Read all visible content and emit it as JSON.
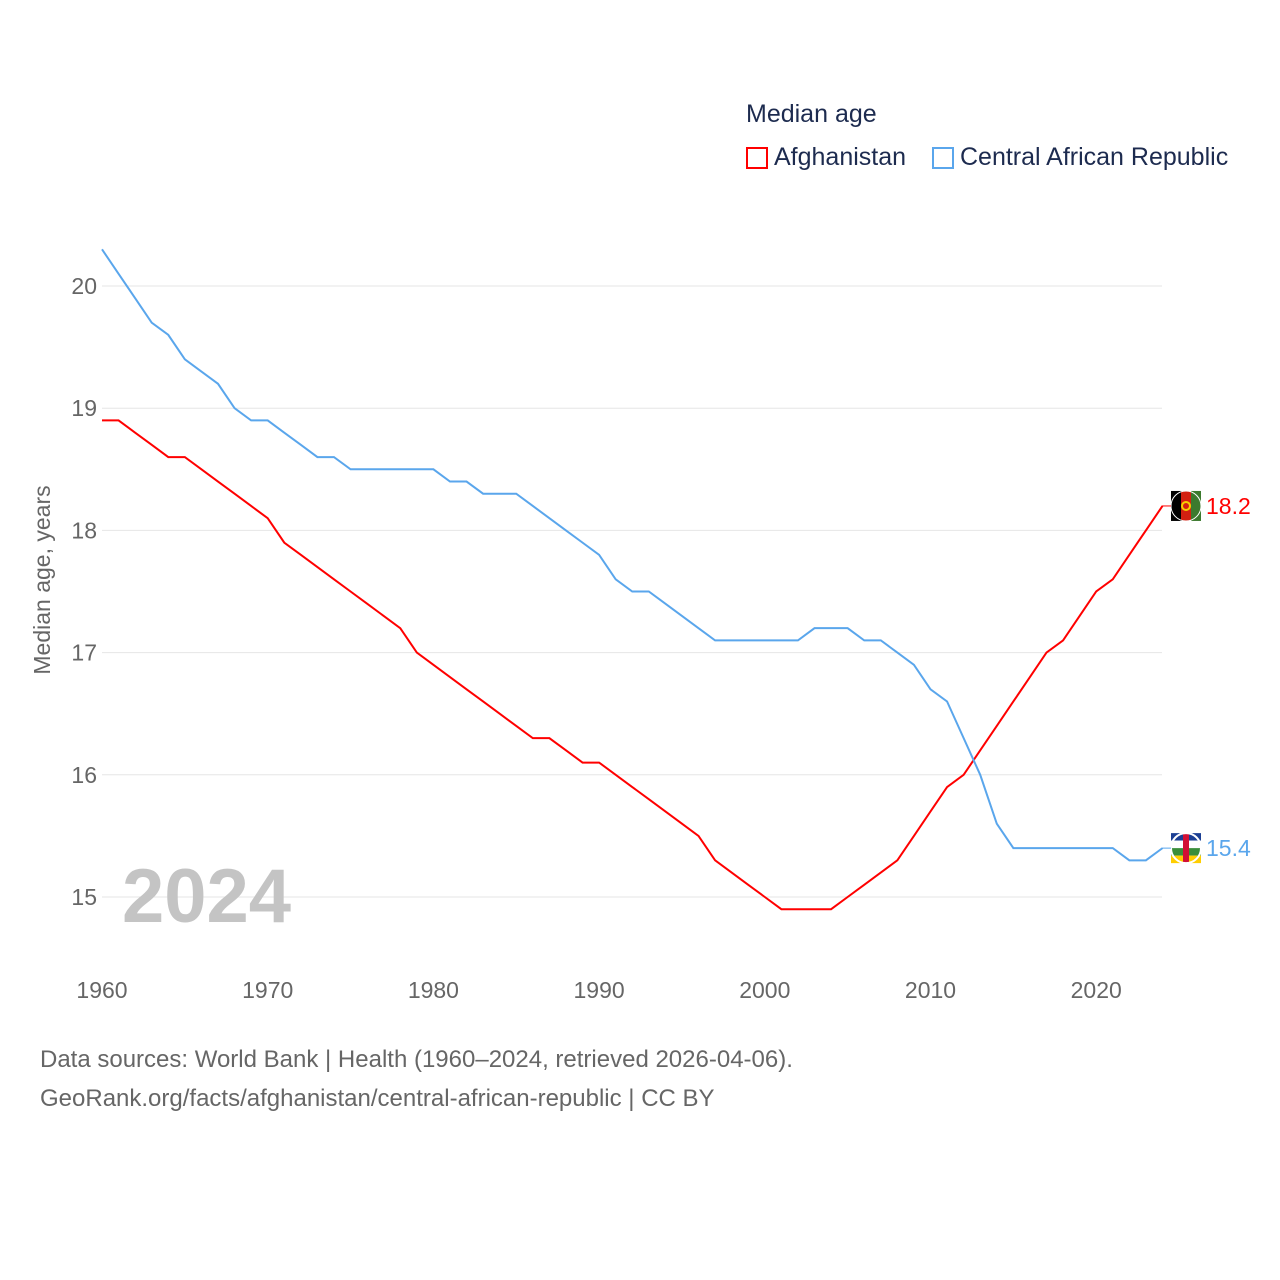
{
  "legend": {
    "title": "Median age",
    "items": [
      "Afghanistan",
      "Central African Republic"
    ]
  },
  "footer": {
    "line1": "Data sources: World Bank | Health (1960–2024, retrieved 2026-04-06).",
    "line2": "GeoRank.org/facts/afghanistan/central-african-republic | CC BY"
  },
  "colors": {
    "afghanistan": "#ff0000",
    "car": "#5aa6ec"
  },
  "chart_data": {
    "type": "line",
    "title": "Median age",
    "ylabel": "Median age, years",
    "xlabel": "",
    "year_label": "2024",
    "xlim": [
      1960,
      2024
    ],
    "ylim": [
      14.5,
      20.5
    ],
    "xticks": [
      1960,
      1970,
      1980,
      1990,
      2000,
      2010,
      2020
    ],
    "yticks": [
      15,
      16,
      17,
      18,
      19,
      20
    ],
    "grid": true,
    "legend_position": "top-right",
    "x_start": 1960,
    "series": [
      {
        "name": "Afghanistan",
        "end_label": "18.2",
        "values": [
          18.9,
          18.9,
          18.8,
          18.7,
          18.6,
          18.6,
          18.5,
          18.4,
          18.3,
          18.2,
          18.1,
          17.9,
          17.8,
          17.7,
          17.6,
          17.5,
          17.4,
          17.3,
          17.2,
          17.0,
          16.9,
          16.8,
          16.7,
          16.6,
          16.5,
          16.4,
          16.3,
          16.3,
          16.2,
          16.1,
          16.1,
          16.0,
          15.9,
          15.8,
          15.7,
          15.6,
          15.5,
          15.3,
          15.2,
          15.1,
          15.0,
          14.9,
          14.9,
          14.9,
          14.9,
          15.0,
          15.1,
          15.2,
          15.3,
          15.5,
          15.7,
          15.9,
          16.0,
          16.2,
          16.4,
          16.6,
          16.8,
          17.0,
          17.1,
          17.3,
          17.5,
          17.6,
          17.8,
          18.0,
          18.2
        ]
      },
      {
        "name": "Central African Republic",
        "end_label": "15.4",
        "values": [
          20.3,
          20.1,
          19.9,
          19.7,
          19.6,
          19.4,
          19.3,
          19.2,
          19.0,
          18.9,
          18.9,
          18.8,
          18.7,
          18.6,
          18.6,
          18.5,
          18.5,
          18.5,
          18.5,
          18.5,
          18.5,
          18.4,
          18.4,
          18.3,
          18.3,
          18.3,
          18.2,
          18.1,
          18.0,
          17.9,
          17.8,
          17.6,
          17.5,
          17.5,
          17.4,
          17.3,
          17.2,
          17.1,
          17.1,
          17.1,
          17.1,
          17.1,
          17.1,
          17.2,
          17.2,
          17.2,
          17.1,
          17.1,
          17.0,
          16.9,
          16.7,
          16.6,
          16.3,
          16.0,
          15.6,
          15.4,
          15.4,
          15.4,
          15.4,
          15.4,
          15.4,
          15.4,
          15.3,
          15.3,
          15.4
        ]
      }
    ]
  }
}
